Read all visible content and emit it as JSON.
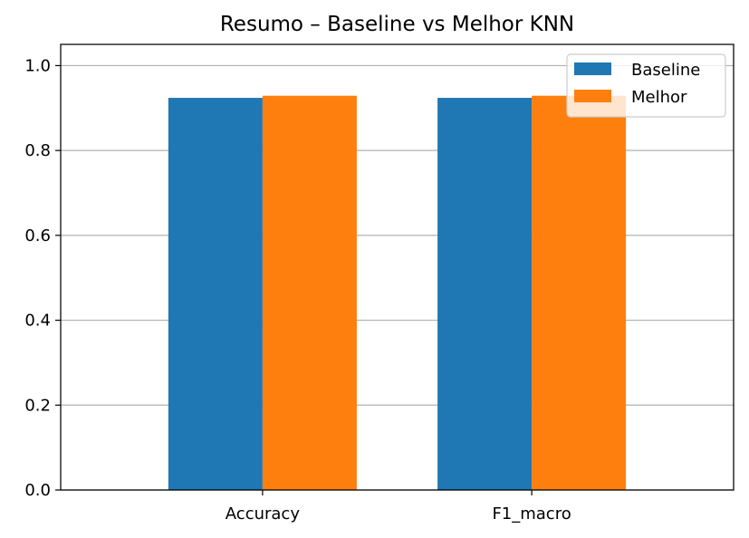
{
  "chart_data": {
    "type": "bar",
    "title": "Resumo – Baseline vs Melhor KNN",
    "xlabel": "",
    "ylabel": "",
    "categories": [
      "Accuracy",
      "F1_macro"
    ],
    "series": [
      {
        "name": "Baseline",
        "color": "#1f77b4",
        "values": [
          0.924,
          0.924
        ]
      },
      {
        "name": "Melhor",
        "color": "#ff7f0e",
        "values": [
          0.929,
          0.929
        ]
      }
    ],
    "ylim": [
      0,
      1.05
    ],
    "yticks": [
      "0.0",
      "0.2",
      "0.4",
      "0.6",
      "0.8",
      "1.0"
    ],
    "grid": "y",
    "legend_position": "upper right"
  }
}
